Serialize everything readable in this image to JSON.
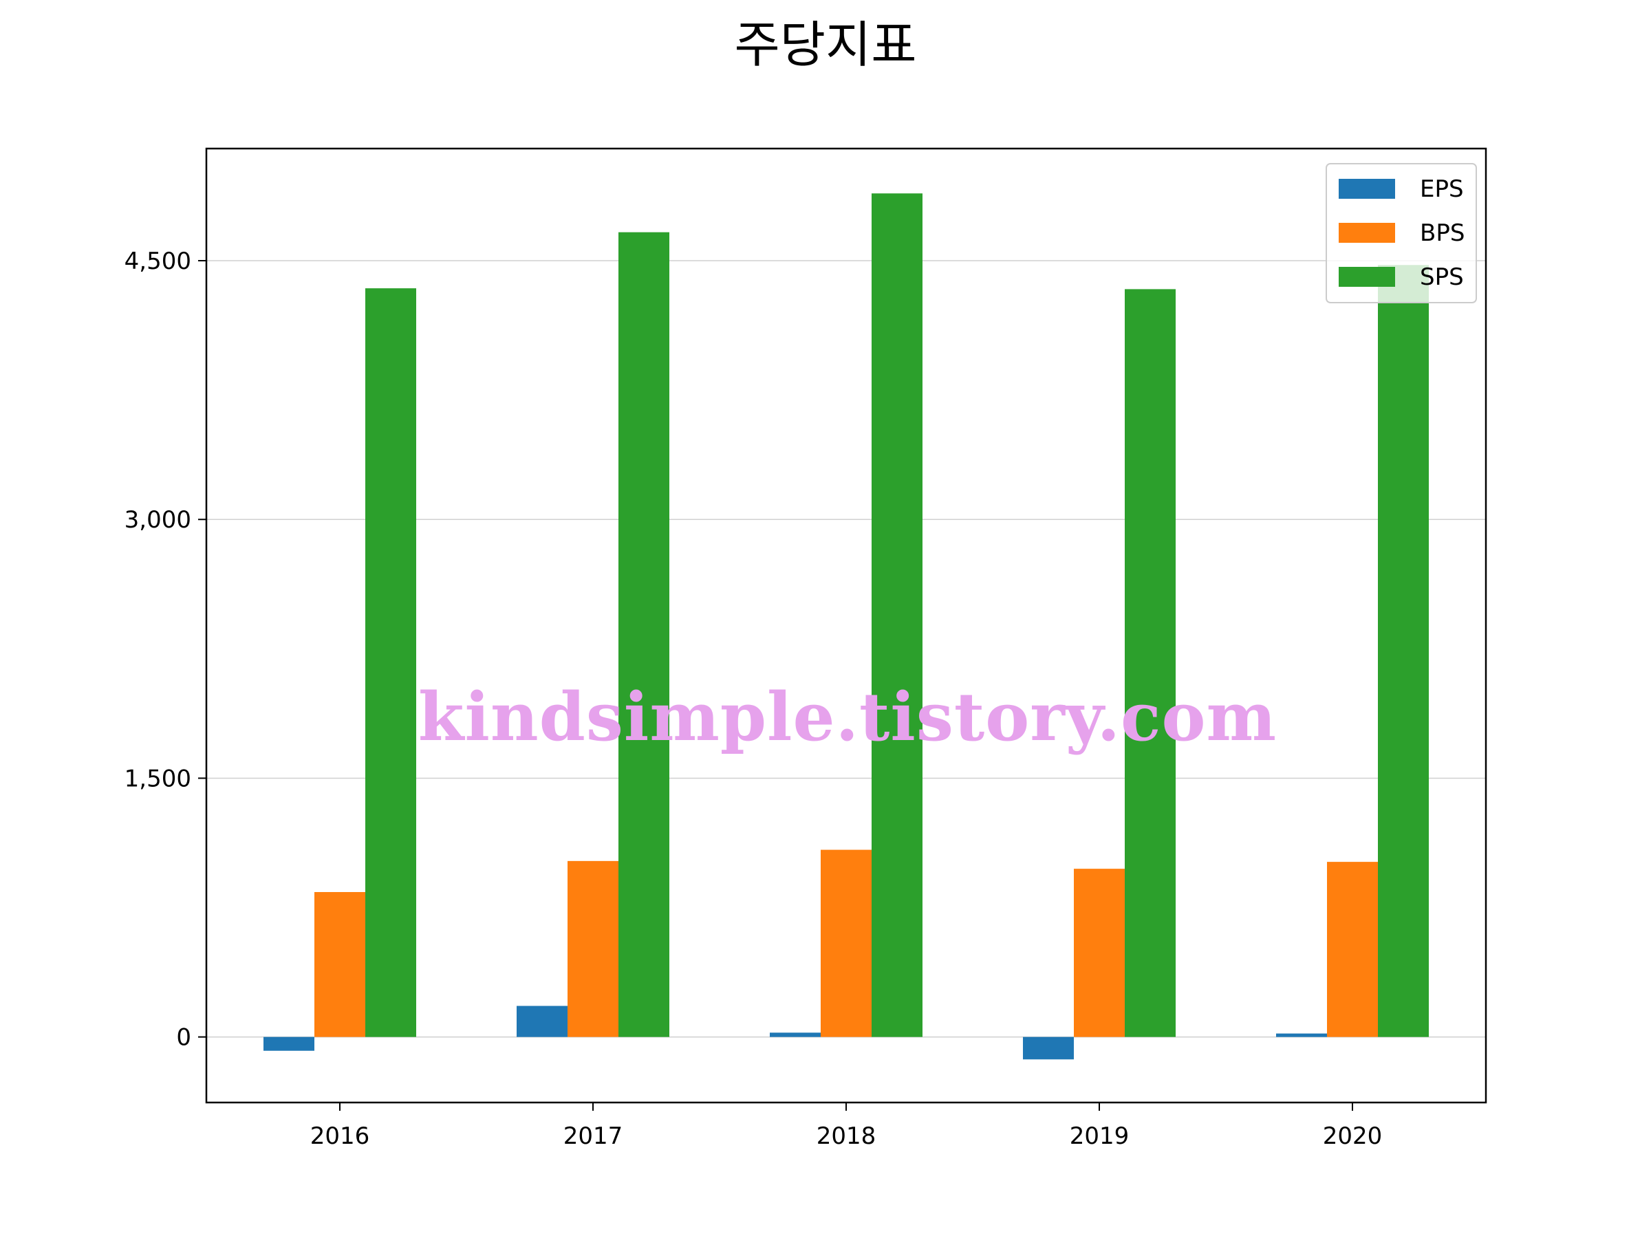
{
  "chart_data": {
    "type": "bar",
    "title": "주당지표",
    "categories": [
      "2016",
      "2017",
      "2018",
      "2019",
      "2020"
    ],
    "series": [
      {
        "name": "EPS",
        "color": "#1f77b4",
        "values": [
          -80,
          180,
          25,
          -130,
          20
        ]
      },
      {
        "name": "BPS",
        "color": "#ff7f0e",
        "values": [
          840,
          1020,
          1085,
          975,
          1015
        ]
      },
      {
        "name": "SPS",
        "color": "#2ca02c",
        "values": [
          4340,
          4665,
          4890,
          4335,
          4475
        ]
      }
    ],
    "ylim": [
      -380,
      5150
    ],
    "yticks": [
      0,
      1500,
      3000,
      4500
    ],
    "ytick_labels": [
      "0",
      "1,500",
      "3,000",
      "4,500"
    ],
    "grid": "y",
    "legend": "top-right",
    "xlabel": "",
    "ylabel": ""
  },
  "watermark": "kindsimple.tistory.com"
}
